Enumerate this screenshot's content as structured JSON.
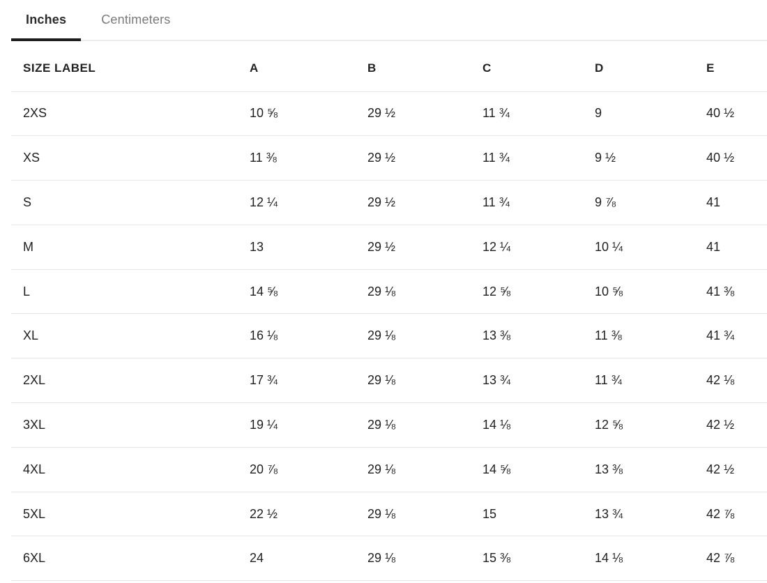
{
  "tabs": [
    {
      "label": "Inches",
      "active": true
    },
    {
      "label": "Centimeters",
      "active": false
    }
  ],
  "table": {
    "columns": [
      "SIZE LABEL",
      "A",
      "B",
      "C",
      "D",
      "E"
    ],
    "rows": [
      {
        "size": "2XS",
        "A": "10 ⅝",
        "B": "29 ½",
        "C": "11 ¾",
        "D": "9",
        "E": "40 ½"
      },
      {
        "size": "XS",
        "A": "11 ⅜",
        "B": "29 ½",
        "C": "11 ¾",
        "D": "9 ½",
        "E": "40 ½"
      },
      {
        "size": "S",
        "A": "12 ¼",
        "B": "29 ½",
        "C": "11 ¾",
        "D": "9 ⅞",
        "E": "41"
      },
      {
        "size": "M",
        "A": "13",
        "B": "29 ½",
        "C": "12 ¼",
        "D": "10 ¼",
        "E": "41"
      },
      {
        "size": "L",
        "A": "14 ⅝",
        "B": "29 ⅛",
        "C": "12 ⅝",
        "D": "10 ⅝",
        "E": "41 ⅜"
      },
      {
        "size": "XL",
        "A": "16 ⅛",
        "B": "29 ⅛",
        "C": "13 ⅜",
        "D": "11 ⅜",
        "E": "41 ¾"
      },
      {
        "size": "2XL",
        "A": "17 ¾",
        "B": "29 ⅛",
        "C": "13 ¾",
        "D": "11 ¾",
        "E": "42 ⅛"
      },
      {
        "size": "3XL",
        "A": "19 ¼",
        "B": "29 ⅛",
        "C": "14 ⅛",
        "D": "12 ⅝",
        "E": "42 ½"
      },
      {
        "size": "4XL",
        "A": "20 ⅞",
        "B": "29 ⅛",
        "C": "14 ⅝",
        "D": "13 ⅜",
        "E": "42 ½"
      },
      {
        "size": "5XL",
        "A": "22 ½",
        "B": "29 ⅛",
        "C": "15",
        "D": "13 ¾",
        "E": "42 ⅞"
      },
      {
        "size": "6XL",
        "A": "24",
        "B": "29 ⅛",
        "C": "15 ⅜",
        "D": "14 ⅛",
        "E": "42 ⅞"
      }
    ]
  },
  "colors": {
    "text": "#1f1f1f",
    "inactive_tab_text": "#7a7a7a",
    "active_tab_underline": "#1d1d1d",
    "divider": "#e6e6e6",
    "tabbar_rule": "#ececec"
  }
}
